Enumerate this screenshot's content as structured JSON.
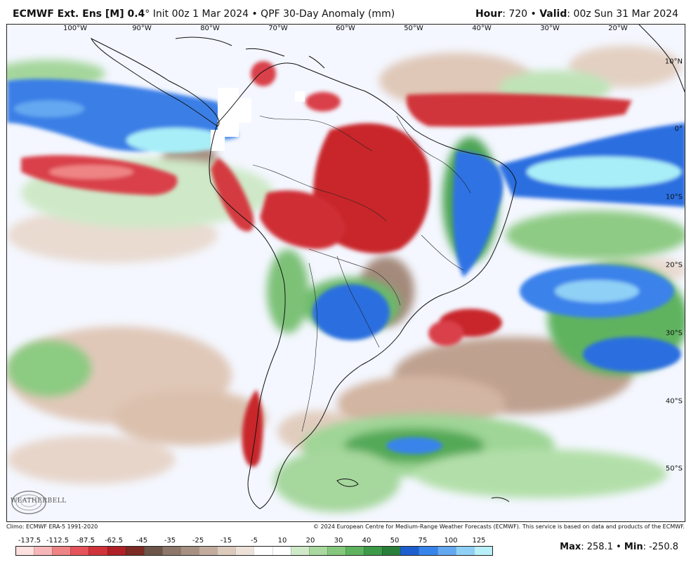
{
  "header": {
    "model": "ECMWF Ext. Ens [M] 0.4",
    "degree": "°",
    "init": " Init 00z 1 Mar 2024 • QPF 30-Day Anomaly (mm)",
    "hour_label": "Hour",
    "hour_value": ": 720 • ",
    "valid_label": "Valid",
    "valid_value": ": 00z Sun 31 Mar 2024"
  },
  "map": {
    "lon_labels": [
      "100°W",
      "90°W",
      "80°W",
      "70°W",
      "60°W",
      "50°W",
      "40°W",
      "30°W",
      "20°W"
    ],
    "lat_labels": [
      "10°N",
      "0°",
      "10°S",
      "20°S",
      "30°S",
      "40°S",
      "50°S"
    ],
    "colors": {
      "dry_red": "#c8262c",
      "dry_brown": "#8f7563",
      "tan": "#d8b9a5",
      "light_green": "#a9d8a0",
      "green": "#3f9f4a",
      "blue": "#2c6ee0",
      "cyan": "#a8eef8",
      "ocean": "#f4f7ff",
      "land_outline": "#111111"
    }
  },
  "logo": {
    "text": "WEATHERBELL"
  },
  "footer": {
    "climo": "Climo: ECMWF ERA-5 1991-2020",
    "copyright": "© 2024 European Centre for Medium-Range Weather Forecasts (ECMWF). This service is based on data and products of the ECMWF."
  },
  "colorbar": {
    "labels": [
      "-137.5",
      "-112.5",
      "-87.5",
      "-62.5",
      "-45",
      "-35",
      "-25",
      "-15",
      "-5",
      "10",
      "20",
      "30",
      "40",
      "50",
      "75",
      "100",
      "125"
    ],
    "colors": [
      "#fde0e0",
      "#f7b7b8",
      "#ef8485",
      "#e4545a",
      "#d0343a",
      "#b02027",
      "#7c2a24",
      "#6e5549",
      "#8d766a",
      "#a89182",
      "#c3ac9d",
      "#dccabd",
      "#ede2d9",
      "#ffffff",
      "#ffffff",
      "#cfeac9",
      "#a9d8a0",
      "#85c77d",
      "#5fb35f",
      "#3d9a48",
      "#2a7f3a",
      "#1e5fd0",
      "#3784ea",
      "#63a8f0",
      "#8fd0f6",
      "#b8f0fa"
    ]
  },
  "stats": {
    "max_label": "Max",
    "max_value": ": 258.1 • ",
    "min_label": "Min",
    "min_value": ": -250.8"
  }
}
